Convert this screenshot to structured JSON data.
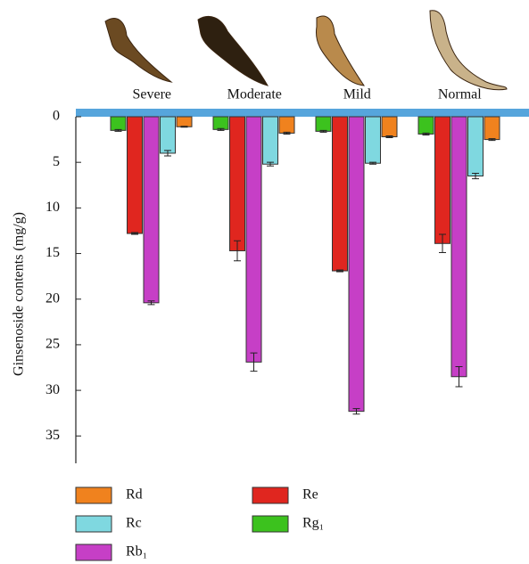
{
  "chart_data": {
    "type": "bar",
    "y_label": "Ginsenoside contents (mg/g)",
    "categories": [
      "Severe",
      "Moderate",
      "Mild",
      "Normal"
    ],
    "series": [
      {
        "name": "Rg₁",
        "color": "#3cc21e",
        "values": [
          1.5,
          1.4,
          1.6,
          1.9
        ],
        "errors": [
          0.1,
          0.1,
          0.1,
          0.1
        ]
      },
      {
        "name": "Re",
        "color": "#e0261f",
        "values": [
          12.8,
          14.7,
          16.9,
          13.9
        ],
        "errors": [
          0.1,
          1.1,
          0.1,
          1.0
        ]
      },
      {
        "name": "Rb₁",
        "color": "#c63fc6",
        "values": [
          20.4,
          26.9,
          32.3,
          28.5
        ],
        "errors": [
          0.2,
          1.0,
          0.3,
          1.1
        ]
      },
      {
        "name": "Rc",
        "color": "#7fd8e0",
        "values": [
          4.0,
          5.2,
          5.1,
          6.5
        ],
        "errors": [
          0.3,
          0.2,
          0.1,
          0.3
        ]
      },
      {
        "name": "Rd",
        "color": "#f0821e",
        "values": [
          1.1,
          1.8,
          2.2,
          2.5
        ],
        "errors": [
          0.05,
          0.1,
          0.1,
          0.1
        ]
      }
    ],
    "ylim": [
      0,
      38
    ],
    "yticks": [
      0,
      5,
      10,
      15,
      20,
      25,
      30,
      35
    ],
    "y_inverted": true
  }
}
